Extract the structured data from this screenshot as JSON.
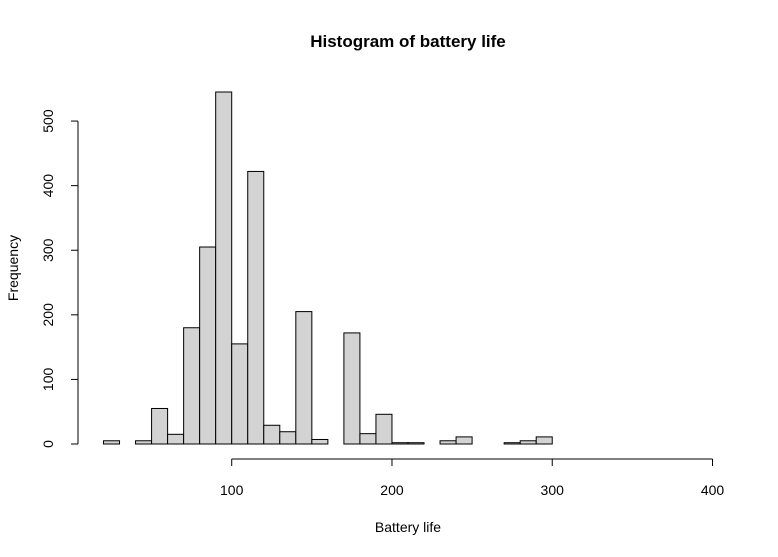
{
  "chart_data": {
    "type": "bar",
    "title": "Histogram of battery life",
    "xlabel": "Battery life",
    "ylabel": "Frequency",
    "bin_width": 10,
    "bin_starts": [
      20,
      30,
      40,
      50,
      60,
      70,
      80,
      90,
      100,
      110,
      120,
      130,
      140,
      150,
      160,
      170,
      180,
      190,
      200,
      210,
      220,
      230,
      240,
      250,
      260,
      270,
      280,
      290,
      300,
      310,
      320,
      330,
      340,
      350,
      360,
      370,
      380,
      390
    ],
    "values": [
      5,
      0,
      5,
      55,
      15,
      180,
      305,
      545,
      155,
      422,
      29,
      19,
      205,
      7,
      0,
      172,
      16,
      46,
      2,
      2,
      0,
      5,
      11,
      0,
      0,
      2,
      5,
      11,
      0,
      0,
      0,
      0,
      0,
      0,
      0,
      0,
      0,
      0
    ],
    "xlim": [
      20,
      400
    ],
    "ylim": [
      0,
      545
    ],
    "x_ticks": [
      100,
      200,
      300,
      400
    ],
    "y_ticks": [
      0,
      100,
      200,
      300,
      400,
      500
    ],
    "bar_fill": "#d3d3d3",
    "bar_stroke": "#000000",
    "grid": false,
    "legend": "none"
  }
}
